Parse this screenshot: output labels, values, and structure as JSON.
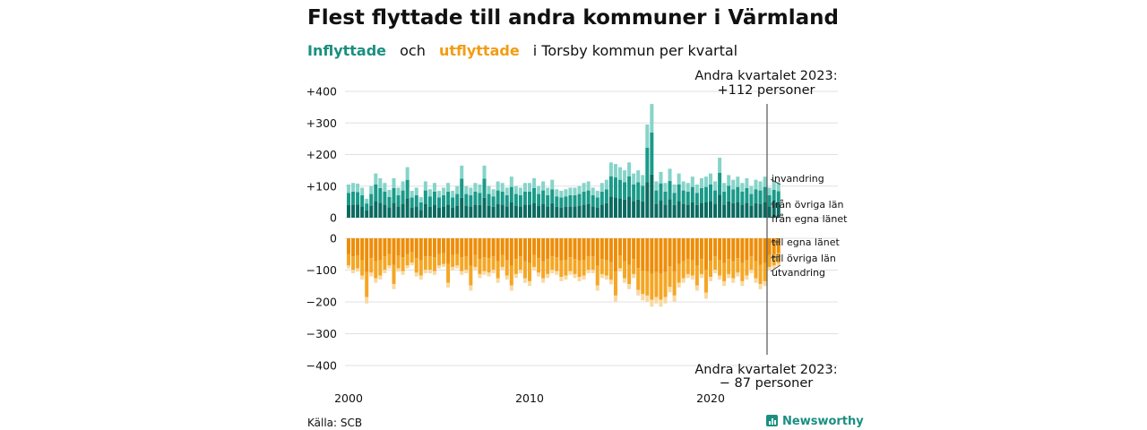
{
  "title": "Flest flyttade till andra kommuner i Värmland",
  "subtitle": {
    "inflow_word": "Inflyttade",
    "and_word": "och",
    "outflow_word": "utflyttade",
    "rest": "i Torsby kommun per kvartal"
  },
  "annotations": {
    "top_line1": "Andra kvartalet 2023:",
    "top_line2": "+112 personer",
    "bottom_line1": "Andra kvartalet 2023:",
    "bottom_line2": "− 87 personer"
  },
  "legend_in": [
    "invandring",
    "från övriga län",
    "från egna länet"
  ],
  "legend_out": [
    "till egna länet",
    "till övriga län",
    "utvandring"
  ],
  "source": "Källa: SCB",
  "brand": "Newsworthy",
  "colors": {
    "in_own": "#0b6b60",
    "in_other": "#1a9a89",
    "in_immig": "#86d4c9",
    "out_own": "#ee8d07",
    "out_other": "#f5a623",
    "out_emig": "#f9d9a3",
    "marker": "#555555"
  },
  "chart_data": {
    "type": "bar",
    "stacked": true,
    "period": "quarter",
    "start": "2000 Q1",
    "end": "2023 Q2",
    "x_ticks": [
      "2000",
      "2010",
      "2020"
    ],
    "y_ticks_top": [
      "+400",
      "+300",
      "+200",
      "+100",
      "0"
    ],
    "y_ticks_bottom": [
      "0",
      "−100",
      "−200",
      "−300",
      "−400"
    ],
    "ylim_top": [
      0,
      400
    ],
    "ylim_bottom": [
      -400,
      0
    ],
    "grid": true,
    "highlight": "2023 Q2",
    "inflow_total": [
      105,
      110,
      108,
      95,
      60,
      100,
      140,
      125,
      110,
      88,
      125,
      95,
      115,
      160,
      85,
      95,
      65,
      115,
      90,
      110,
      85,
      95,
      110,
      85,
      100,
      165,
      100,
      95,
      110,
      105,
      165,
      100,
      90,
      115,
      110,
      95,
      130,
      100,
      95,
      110,
      110,
      125,
      100,
      115,
      95,
      120,
      90,
      85,
      90,
      95,
      95,
      100,
      110,
      115,
      95,
      85,
      110,
      120,
      175,
      170,
      160,
      150,
      175,
      140,
      150,
      135,
      295,
      360,
      115,
      145,
      110,
      155,
      105,
      140,
      115,
      110,
      130,
      105,
      125,
      130,
      140,
      115,
      190,
      110,
      135,
      120,
      130,
      110,
      125,
      100,
      120,
      115,
      130,
      95,
      118,
      112
    ],
    "outflow_total": [
      95,
      110,
      105,
      130,
      205,
      120,
      140,
      130,
      110,
      95,
      160,
      105,
      115,
      95,
      85,
      120,
      130,
      110,
      110,
      115,
      95,
      90,
      155,
      100,
      95,
      115,
      110,
      165,
      100,
      125,
      115,
      120,
      110,
      140,
      100,
      130,
      165,
      125,
      110,
      140,
      150,
      100,
      120,
      140,
      125,
      110,
      115,
      135,
      130,
      115,
      125,
      135,
      130,
      110,
      110,
      165,
      125,
      130,
      145,
      200,
      105,
      140,
      160,
      125,
      180,
      195,
      200,
      215,
      205,
      215,
      205,
      170,
      200,
      155,
      140,
      125,
      130,
      165,
      125,
      190,
      135,
      110,
      130,
      150,
      125,
      140,
      120,
      150,
      130,
      110,
      140,
      160,
      150,
      100,
      95,
      87
    ],
    "inflow_components": {
      "from_own_county_share": 0.38,
      "from_other_counties_share": 0.37,
      "immigration_share": 0.25
    },
    "outflow_components": {
      "to_own_county_share": 0.52,
      "to_other_counties_share": 0.38,
      "emigration_share": 0.1
    }
  }
}
